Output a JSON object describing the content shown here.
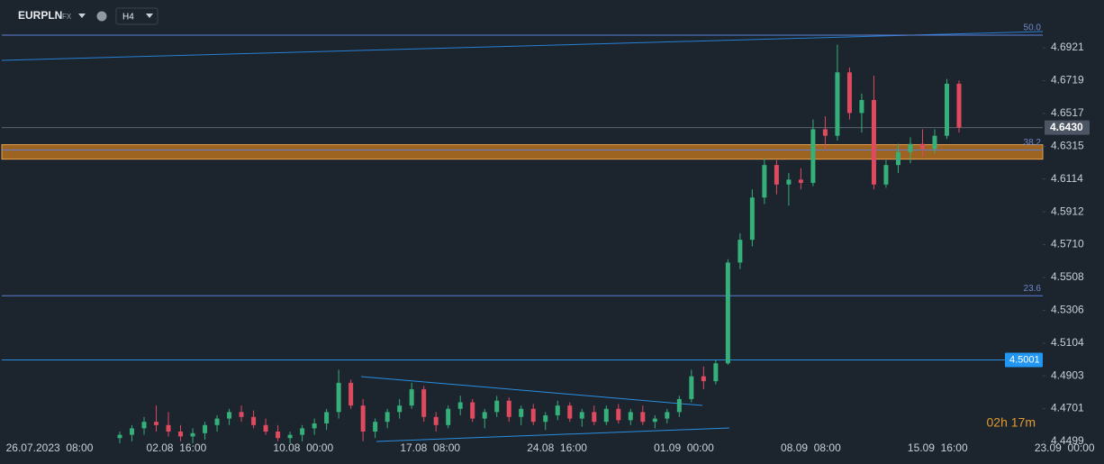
{
  "header": {
    "symbol": "EURPLN",
    "market": "FX",
    "timeframe": "H4"
  },
  "chart_data": {
    "type": "candlestick",
    "up_color": "#35b07a",
    "down_color": "#e04a5f",
    "ylim": [
      4.4488,
      4.706
    ],
    "yticks": [
      4.6921,
      4.6719,
      4.6517,
      4.6315,
      4.6114,
      4.5912,
      {
        "value": 4.571,
        "label": "4.5710"
      },
      4.5508,
      4.5306,
      4.5104,
      4.4903,
      4.4701,
      4.4499
    ],
    "x_labels": [
      "26.07.2023  08:00",
      "02.08  16:00",
      "10.08  00:00",
      "17.08  08:00",
      "24.08  16:00",
      "01.09  00:00",
      "08.09  08:00",
      "15.09  16:00",
      "23.09  00:00"
    ],
    "current_price": {
      "value": 4.643,
      "label": "4.6430"
    },
    "alert_level": 4.5001,
    "fib_levels": [
      {
        "value": 4.6999,
        "label": "50.0"
      },
      {
        "value": 4.6292,
        "label": "38.2"
      },
      {
        "value": 4.5396,
        "label": "23.6"
      }
    ],
    "zone": [
      4.6236,
      4.6325
    ],
    "countdown": "02h 17m",
    "open": [
      4.452,
      4.454,
      4.458,
      4.462,
      4.46,
      4.456,
      4.453,
      4.455,
      4.46,
      4.464,
      4.468,
      4.465,
      4.46,
      4.456,
      4.452,
      4.454,
      4.458,
      4.461,
      4.468,
      4.486,
      4.472,
      4.456,
      4.462,
      4.468,
      4.472,
      4.482,
      4.465,
      4.46,
      4.47,
      4.474,
      4.464,
      4.468,
      4.475,
      4.465,
      4.47,
      4.462,
      4.466,
      4.472,
      4.464,
      4.468,
      4.462,
      4.47,
      4.463,
      4.468,
      4.462,
      4.464,
      4.468,
      4.476,
      4.49,
      4.487,
      4.498,
      4.56,
      4.574,
      4.6,
      4.62,
      4.608,
      4.611,
      4.609,
      4.642,
      4.638,
      4.677,
      4.652,
      4.66,
      4.608,
      4.62,
      4.628,
      4.633,
      4.63,
      4.638,
      4.67
    ],
    "high": [
      4.456,
      4.46,
      4.465,
      4.472,
      4.468,
      4.46,
      4.458,
      4.462,
      4.466,
      4.47,
      4.472,
      4.469,
      4.464,
      4.46,
      4.456,
      4.46,
      4.464,
      4.47,
      4.494,
      4.488,
      4.476,
      4.464,
      4.47,
      4.476,
      4.486,
      4.484,
      4.468,
      4.472,
      4.478,
      4.476,
      4.47,
      4.478,
      4.477,
      4.472,
      4.473,
      4.468,
      4.475,
      4.474,
      4.47,
      4.472,
      4.472,
      4.473,
      4.47,
      4.472,
      4.466,
      4.47,
      4.478,
      4.494,
      4.496,
      4.5,
      4.562,
      4.578,
      4.605,
      4.624,
      4.623,
      4.615,
      4.618,
      4.648,
      4.65,
      4.694,
      4.68,
      4.664,
      4.675,
      4.623,
      4.633,
      4.637,
      4.642,
      4.642,
      4.673,
      4.672
    ],
    "low": [
      4.4488,
      4.45,
      4.454,
      4.456,
      4.453,
      4.45,
      4.4488,
      4.451,
      4.456,
      4.46,
      4.462,
      4.458,
      4.454,
      4.45,
      4.4488,
      4.45,
      4.454,
      4.457,
      4.464,
      4.47,
      4.45,
      4.452,
      4.458,
      4.464,
      4.47,
      4.462,
      4.456,
      4.458,
      4.466,
      4.462,
      4.458,
      4.465,
      4.462,
      4.46,
      4.46,
      4.457,
      4.463,
      4.462,
      4.459,
      4.46,
      4.46,
      4.461,
      4.46,
      4.46,
      4.458,
      4.461,
      4.465,
      4.474,
      4.482,
      4.485,
      4.497,
      4.556,
      4.57,
      4.596,
      4.602,
      4.595,
      4.605,
      4.607,
      4.63,
      4.635,
      4.648,
      4.64,
      4.605,
      4.606,
      4.615,
      4.621,
      4.625,
      4.627,
      4.636,
      4.64
    ],
    "close": [
      4.454,
      4.458,
      4.462,
      4.46,
      4.456,
      4.453,
      4.455,
      4.46,
      4.464,
      4.468,
      4.465,
      4.46,
      4.456,
      4.452,
      4.454,
      4.458,
      4.461,
      4.468,
      4.486,
      4.472,
      4.456,
      4.462,
      4.468,
      4.472,
      4.482,
      4.465,
      4.46,
      4.47,
      4.474,
      4.464,
      4.468,
      4.475,
      4.465,
      4.47,
      4.462,
      4.466,
      4.472,
      4.464,
      4.468,
      4.462,
      4.47,
      4.463,
      4.468,
      4.462,
      4.464,
      4.468,
      4.476,
      4.49,
      4.487,
      4.498,
      4.56,
      4.574,
      4.6,
      4.62,
      4.608,
      4.611,
      4.609,
      4.642,
      4.638,
      4.677,
      4.652,
      4.66,
      4.608,
      4.62,
      4.628,
      4.633,
      4.63,
      4.638,
      4.67,
      4.643
    ]
  }
}
